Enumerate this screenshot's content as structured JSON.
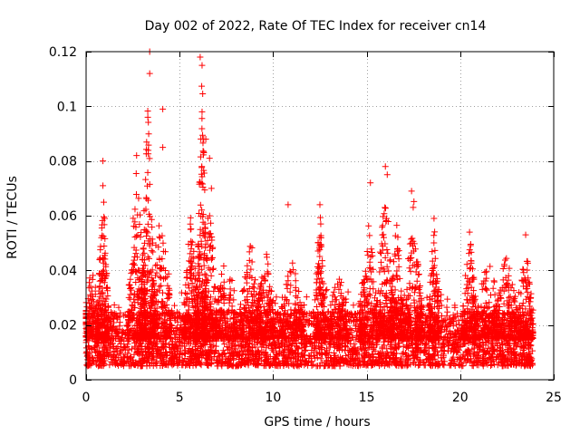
{
  "chart_data": {
    "type": "scatter",
    "title": "Day 002 of 2022, Rate Of TEC Index for receiver cn14",
    "xlabel": "GPS time / hours",
    "ylabel": "ROTI / TECUs",
    "xlim": [
      0,
      25
    ],
    "ylim": [
      0,
      0.12
    ],
    "x_ticks": [
      0,
      5,
      10,
      15,
      20,
      25
    ],
    "x_tick_labels": [
      "0",
      "5",
      "10",
      "15",
      "20",
      "25"
    ],
    "y_ticks": [
      0,
      0.02,
      0.04,
      0.06,
      0.08,
      0.1,
      0.12
    ],
    "y_tick_labels": [
      "0",
      "0.02",
      "0.04",
      "0.06",
      "0.08",
      "0.1",
      "0.12"
    ],
    "grid": true,
    "marker": "+",
    "color": "#ff0000",
    "data_range": {
      "x_min": 0.0,
      "x_max": 23.9
    },
    "baseline": {
      "typical_min": 0.005,
      "typical_max": 0.025
    },
    "notable_points": [
      {
        "x": 0.9,
        "y": 0.08
      },
      {
        "x": 0.9,
        "y": 0.071
      },
      {
        "x": 2.7,
        "y": 0.082
      },
      {
        "x": 3.3,
        "y": 0.096
      },
      {
        "x": 3.4,
        "y": 0.12
      },
      {
        "x": 3.4,
        "y": 0.112
      },
      {
        "x": 4.1,
        "y": 0.099
      },
      {
        "x": 4.1,
        "y": 0.085
      },
      {
        "x": 6.1,
        "y": 0.118
      },
      {
        "x": 6.2,
        "y": 0.115
      },
      {
        "x": 6.2,
        "y": 0.098
      },
      {
        "x": 6.4,
        "y": 0.088
      },
      {
        "x": 6.6,
        "y": 0.081
      },
      {
        "x": 6.7,
        "y": 0.07
      },
      {
        "x": 10.8,
        "y": 0.064
      },
      {
        "x": 12.5,
        "y": 0.064
      },
      {
        "x": 15.2,
        "y": 0.072
      },
      {
        "x": 16.0,
        "y": 0.078
      },
      {
        "x": 16.1,
        "y": 0.075
      },
      {
        "x": 17.4,
        "y": 0.069
      },
      {
        "x": 18.6,
        "y": 0.059
      },
      {
        "x": 20.5,
        "y": 0.054
      },
      {
        "x": 23.5,
        "y": 0.053
      }
    ],
    "bursts": [
      {
        "center": 0.3,
        "width": 0.4,
        "peak": 0.045
      },
      {
        "center": 0.9,
        "width": 0.3,
        "peak": 0.074
      },
      {
        "center": 2.7,
        "width": 0.5,
        "peak": 0.082
      },
      {
        "center": 3.3,
        "width": 0.4,
        "peak": 0.1
      },
      {
        "center": 4.0,
        "width": 0.6,
        "peak": 0.07
      },
      {
        "center": 5.6,
        "width": 0.4,
        "peak": 0.062
      },
      {
        "center": 6.2,
        "width": 0.3,
        "peak": 0.115
      },
      {
        "center": 6.6,
        "width": 0.4,
        "peak": 0.072
      },
      {
        "center": 7.5,
        "width": 0.6,
        "peak": 0.05
      },
      {
        "center": 8.8,
        "width": 0.6,
        "peak": 0.052
      },
      {
        "center": 9.6,
        "width": 0.5,
        "peak": 0.05
      },
      {
        "center": 11.0,
        "width": 0.6,
        "peak": 0.047
      },
      {
        "center": 12.5,
        "width": 0.3,
        "peak": 0.064
      },
      {
        "center": 13.5,
        "width": 0.5,
        "peak": 0.04
      },
      {
        "center": 15.1,
        "width": 0.5,
        "peak": 0.06
      },
      {
        "center": 16.0,
        "width": 0.5,
        "peak": 0.076
      },
      {
        "center": 16.6,
        "width": 0.4,
        "peak": 0.058
      },
      {
        "center": 17.5,
        "width": 0.5,
        "peak": 0.068
      },
      {
        "center": 18.6,
        "width": 0.3,
        "peak": 0.058
      },
      {
        "center": 20.5,
        "width": 0.4,
        "peak": 0.054
      },
      {
        "center": 21.5,
        "width": 0.6,
        "peak": 0.05
      },
      {
        "center": 22.5,
        "width": 0.6,
        "peak": 0.05
      },
      {
        "center": 23.5,
        "width": 0.4,
        "peak": 0.053
      }
    ]
  }
}
